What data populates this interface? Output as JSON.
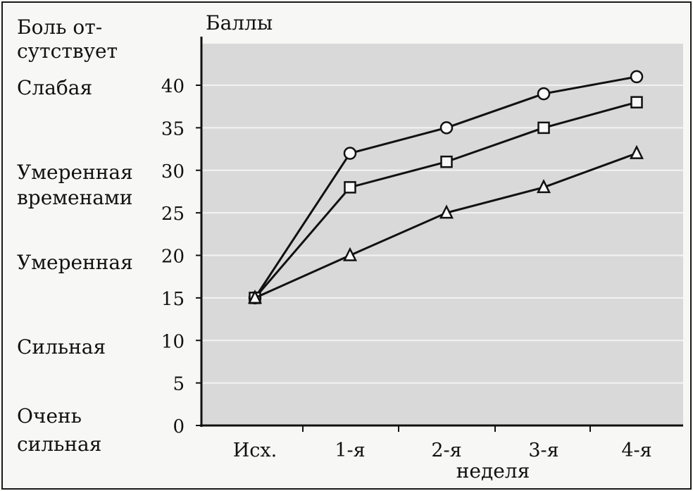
{
  "chart_data": {
    "type": "line",
    "title": "",
    "ylabel": "Баллы",
    "xlabel": "неделя",
    "categories": [
      "Исх.",
      "1-я",
      "2-я",
      "3-я",
      "4-я"
    ],
    "ylim": [
      0,
      45
    ],
    "yticks": [
      0,
      5,
      10,
      15,
      20,
      25,
      30,
      35,
      40
    ],
    "grid": true,
    "pain_scale": [
      {
        "label": "Боль от-",
        "label2": "сутствует"
      },
      {
        "label": "Слабая"
      },
      {
        "label": "Умеренная",
        "label2": "временами"
      },
      {
        "label": "Умеренная"
      },
      {
        "label": "Сильная"
      },
      {
        "label": "Очень",
        "label2": "сильная"
      }
    ],
    "series": [
      {
        "marker": "circle",
        "values": [
          15,
          32,
          35,
          39,
          41
        ]
      },
      {
        "marker": "square",
        "values": [
          15,
          28,
          31,
          35,
          38
        ]
      },
      {
        "marker": "triangle",
        "values": [
          15,
          20,
          25,
          28,
          32
        ]
      }
    ],
    "colors": {
      "plot_bg": "#d9d9d9",
      "grid": "#f3f3f3",
      "line": "#111111"
    }
  }
}
